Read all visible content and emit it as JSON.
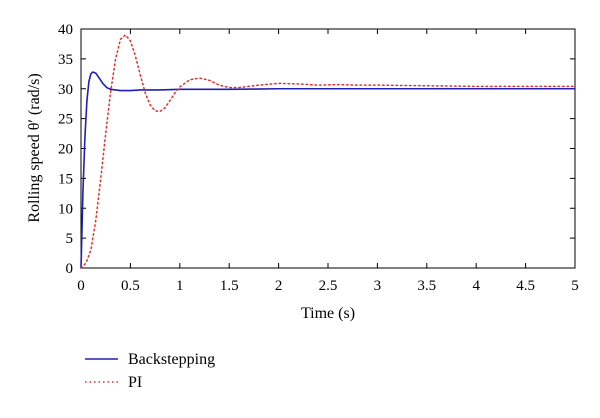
{
  "chart_data": {
    "type": "line",
    "title": "",
    "xlabel": "Time (s)",
    "ylabel": "Rolling speed θ′ (rad/s)",
    "xlim": [
      0,
      5
    ],
    "ylim": [
      0,
      40
    ],
    "x_ticks": [
      "0",
      "0.5",
      "1",
      "1.5",
      "2",
      "2.5",
      "3",
      "3.5",
      "4",
      "4.5",
      "5"
    ],
    "y_ticks": [
      "0",
      "5",
      "10",
      "15",
      "20",
      "25",
      "30",
      "35",
      "40"
    ],
    "grid": false,
    "legend_position": "bottom-left",
    "series": [
      {
        "name": "Backstepping",
        "color": "#1f1fb4",
        "style": "solid",
        "x": [
          0,
          0.02,
          0.04,
          0.06,
          0.08,
          0.1,
          0.12,
          0.15,
          0.18,
          0.22,
          0.26,
          0.3,
          0.35,
          0.4,
          0.5,
          0.6,
          0.8,
          1.0,
          1.5,
          2.0,
          3.0,
          4.0,
          5.0
        ],
        "y": [
          0,
          13,
          22,
          28,
          31.2,
          32.5,
          32.8,
          32.6,
          31.9,
          30.9,
          30.2,
          29.9,
          29.8,
          29.7,
          29.7,
          29.8,
          29.8,
          29.9,
          29.9,
          30.0,
          30.0,
          30.0,
          30.0
        ]
      },
      {
        "name": "PI",
        "color": "#e03030",
        "style": "dotted",
        "x": [
          0,
          0.05,
          0.1,
          0.15,
          0.2,
          0.25,
          0.3,
          0.35,
          0.4,
          0.45,
          0.5,
          0.55,
          0.6,
          0.65,
          0.7,
          0.75,
          0.8,
          0.85,
          0.9,
          0.95,
          1.0,
          1.1,
          1.2,
          1.3,
          1.4,
          1.5,
          1.6,
          1.8,
          2.0,
          2.2,
          2.4,
          2.6,
          2.8,
          3.0,
          3.5,
          4.0,
          4.5,
          5.0
        ],
        "y": [
          0,
          0.8,
          3,
          8,
          15,
          22.5,
          29.5,
          35,
          38.3,
          39.0,
          38.0,
          35.5,
          32.3,
          29.3,
          27.3,
          26.3,
          26.2,
          26.8,
          28.0,
          29.3,
          30.3,
          31.5,
          31.8,
          31.4,
          30.6,
          30.2,
          30.2,
          30.6,
          30.9,
          30.8,
          30.6,
          30.7,
          30.6,
          30.6,
          30.5,
          30.4,
          30.4,
          30.4
        ]
      }
    ]
  }
}
